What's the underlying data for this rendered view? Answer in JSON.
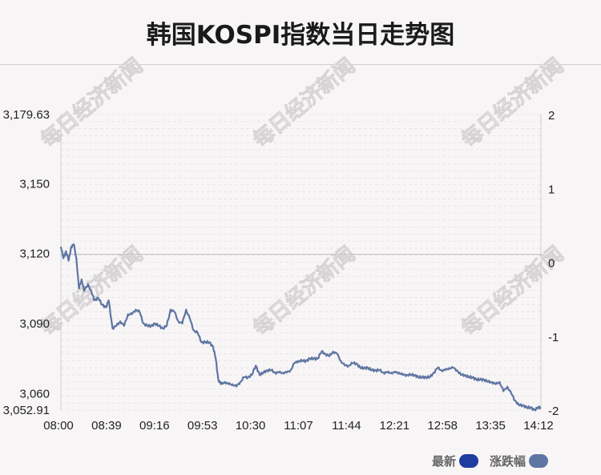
{
  "page": {
    "title": "韩国KOSPI指数当日走势图",
    "watermark": "每日经济新闻"
  },
  "legend": {
    "latest_label": "最新",
    "latest_color": "#1f3d9e",
    "change_label": "涨跌幅",
    "change_color": "#5e76a2"
  },
  "chart_data": {
    "type": "line",
    "title": "韩国KOSPI指数当日走势图",
    "xlabel": "",
    "ylabel": "",
    "x_ticks": [
      "08:00",
      "08:39",
      "09:16",
      "09:53",
      "10:30",
      "11:07",
      "11:44",
      "12:21",
      "12:58",
      "13:35",
      "14:12"
    ],
    "x_range": [
      "08:00",
      "14:12"
    ],
    "y_left_ticks": [
      "3,179.63",
      "3,150",
      "3,120",
      "3,090",
      "3,060",
      "3,052.91"
    ],
    "y_left_range": [
      3052.91,
      3179.63
    ],
    "y_right_ticks": [
      "2",
      "1",
      "0",
      "-1",
      "-2"
    ],
    "y_right_range": [
      -2,
      2
    ],
    "reference_line": 3119.7,
    "line_color": "#5e76a2",
    "grid": "horizontal dashed",
    "series": [
      {
        "points": [
          [
            "08:00",
            3123
          ],
          [
            "08:02",
            3118
          ],
          [
            "08:04",
            3121
          ],
          [
            "08:06",
            3117
          ],
          [
            "08:08",
            3123
          ],
          [
            "08:10",
            3124
          ],
          [
            "08:12",
            3118
          ],
          [
            "08:14",
            3105
          ],
          [
            "08:16",
            3109
          ],
          [
            "08:18",
            3104
          ],
          [
            "08:21",
            3107
          ],
          [
            "08:24",
            3103
          ],
          [
            "08:26",
            3100
          ],
          [
            "08:29",
            3101
          ],
          [
            "08:32",
            3098
          ],
          [
            "08:35",
            3097
          ],
          [
            "08:37",
            3100
          ],
          [
            "08:40",
            3088
          ],
          [
            "08:43",
            3089
          ],
          [
            "08:46",
            3091
          ],
          [
            "08:49",
            3089
          ],
          [
            "08:52",
            3094
          ],
          [
            "08:55",
            3094
          ],
          [
            "08:58",
            3096
          ],
          [
            "09:01",
            3095
          ],
          [
            "09:04",
            3090
          ],
          [
            "09:07",
            3089
          ],
          [
            "09:10",
            3089
          ],
          [
            "09:13",
            3090
          ],
          [
            "09:16",
            3089
          ],
          [
            "09:19",
            3088
          ],
          [
            "09:22",
            3089
          ],
          [
            "09:25",
            3096
          ],
          [
            "09:28",
            3095
          ],
          [
            "09:31",
            3091
          ],
          [
            "09:34",
            3090
          ],
          [
            "09:37",
            3096
          ],
          [
            "09:40",
            3092
          ],
          [
            "09:43",
            3087
          ],
          [
            "09:46",
            3086
          ],
          [
            "09:49",
            3082
          ],
          [
            "09:52",
            3082
          ],
          [
            "09:55",
            3082
          ],
          [
            "09:58",
            3080
          ],
          [
            "10:00",
            3075
          ],
          [
            "10:02",
            3066
          ],
          [
            "10:04",
            3064
          ],
          [
            "10:07",
            3065
          ],
          [
            "10:10",
            3064
          ],
          [
            "10:13",
            3064
          ],
          [
            "10:16",
            3063
          ],
          [
            "10:19",
            3065
          ],
          [
            "10:22",
            3067
          ],
          [
            "10:25",
            3067
          ],
          [
            "10:28",
            3068
          ],
          [
            "10:31",
            3072
          ],
          [
            "10:34",
            3068
          ],
          [
            "10:37",
            3069
          ],
          [
            "10:40",
            3070
          ],
          [
            "10:43",
            3070
          ],
          [
            "10:46",
            3069
          ],
          [
            "10:49",
            3069
          ],
          [
            "10:52",
            3069
          ],
          [
            "10:55",
            3069
          ],
          [
            "10:58",
            3070
          ],
          [
            "11:01",
            3073
          ],
          [
            "11:04",
            3074
          ],
          [
            "11:07",
            3074
          ],
          [
            "11:10",
            3074
          ],
          [
            "11:13",
            3075
          ],
          [
            "11:16",
            3075
          ],
          [
            "11:19",
            3075
          ],
          [
            "11:22",
            3078
          ],
          [
            "11:25",
            3077
          ],
          [
            "11:28",
            3076
          ],
          [
            "11:31",
            3078
          ],
          [
            "11:34",
            3077
          ],
          [
            "11:37",
            3074
          ],
          [
            "11:40",
            3072
          ],
          [
            "11:43",
            3072
          ],
          [
            "11:46",
            3073
          ],
          [
            "11:49",
            3073
          ],
          [
            "11:52",
            3071
          ],
          [
            "11:55",
            3071
          ],
          [
            "11:58",
            3071
          ],
          [
            "12:01",
            3070
          ],
          [
            "12:04",
            3070
          ],
          [
            "12:07",
            3070
          ],
          [
            "12:10",
            3069
          ],
          [
            "12:13",
            3069
          ],
          [
            "12:16",
            3069
          ],
          [
            "12:19",
            3069
          ],
          [
            "12:22",
            3069
          ],
          [
            "12:25",
            3068
          ],
          [
            "12:28",
            3068
          ],
          [
            "12:31",
            3068
          ],
          [
            "12:34",
            3068
          ],
          [
            "12:37",
            3067
          ],
          [
            "12:40",
            3067
          ],
          [
            "12:43",
            3067
          ],
          [
            "12:46",
            3067
          ],
          [
            "12:49",
            3069
          ],
          [
            "12:52",
            3071
          ],
          [
            "12:55",
            3070
          ],
          [
            "12:58",
            3070
          ],
          [
            "13:01",
            3071
          ],
          [
            "13:04",
            3071
          ],
          [
            "13:07",
            3070
          ],
          [
            "13:10",
            3068
          ],
          [
            "13:13",
            3068
          ],
          [
            "13:16",
            3067
          ],
          [
            "13:19",
            3067
          ],
          [
            "13:22",
            3066
          ],
          [
            "13:25",
            3066
          ],
          [
            "13:28",
            3066
          ],
          [
            "13:31",
            3065
          ],
          [
            "13:34",
            3065
          ],
          [
            "13:37",
            3064
          ],
          [
            "13:40",
            3065
          ],
          [
            "13:43",
            3061
          ],
          [
            "13:46",
            3063
          ],
          [
            "13:49",
            3060
          ],
          [
            "13:52",
            3057
          ],
          [
            "13:55",
            3055
          ],
          [
            "13:58",
            3055
          ],
          [
            "14:01",
            3054
          ],
          [
            "14:04",
            3054
          ],
          [
            "14:07",
            3053
          ],
          [
            "14:10",
            3054
          ],
          [
            "14:12",
            3054
          ]
        ]
      }
    ]
  }
}
